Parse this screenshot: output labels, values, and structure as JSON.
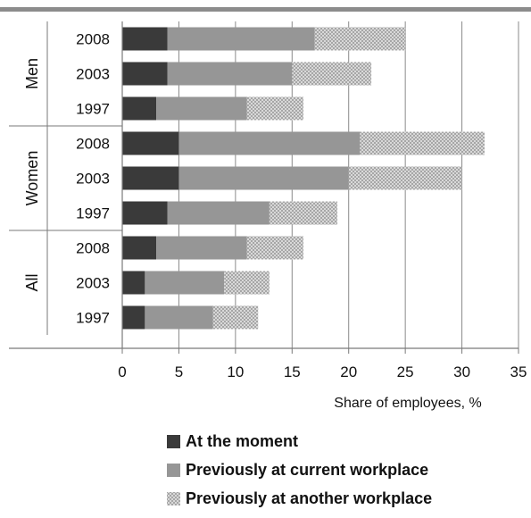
{
  "chart_data": {
    "type": "bar",
    "orientation": "horizontal",
    "stacked": true,
    "groups": [
      {
        "name": "Men",
        "categories": [
          "2008",
          "2003",
          "1997"
        ]
      },
      {
        "name": "Women",
        "categories": [
          "2008",
          "2003",
          "1997"
        ]
      },
      {
        "name": "All",
        "categories": [
          "2008",
          "2003",
          "1997"
        ]
      }
    ],
    "series": [
      {
        "name": "At the moment",
        "color": "#3a3a3a",
        "pattern": "solid",
        "values": [
          4,
          4,
          3,
          5,
          5,
          4,
          3,
          2,
          2
        ]
      },
      {
        "name": "Previously at current workplace",
        "color": "#969696",
        "pattern": "solid",
        "values": [
          13,
          11,
          8,
          16,
          15,
          9,
          8,
          7,
          6
        ]
      },
      {
        "name": "Previously at another workplace",
        "color": "#d3d3d3",
        "pattern": "crosshatch",
        "values": [
          8,
          7,
          5,
          11,
          10,
          6,
          5,
          4,
          4
        ]
      }
    ],
    "xlabel": "Share of employees, %",
    "xlim": [
      0,
      35
    ],
    "xticks": [
      0,
      5,
      10,
      15,
      20,
      25,
      30,
      35
    ],
    "grid": "vertical",
    "legend": "bottom"
  }
}
